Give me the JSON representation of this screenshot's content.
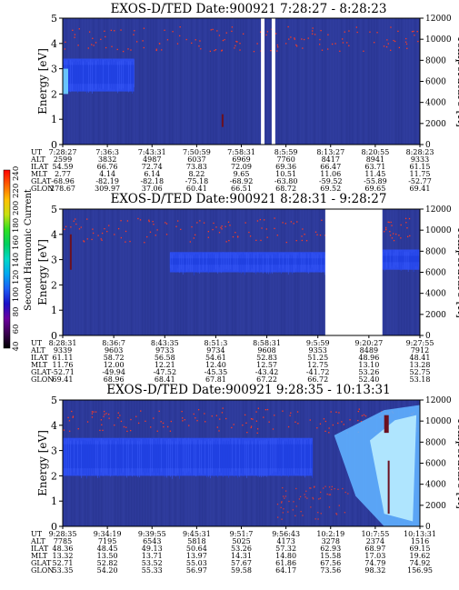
{
  "colors": {
    "background": "#2d3a9a",
    "band": "#2b4cf0",
    "band_core": "#1f3fe0",
    "aurora": "#5fb0ff",
    "aurora_core": "#b8ecff",
    "red_dot": "#ff3b20",
    "dark_mark": "#6b1020"
  },
  "colorbar": {
    "title": "Second Harmonic Current",
    "ticks": [
      "40",
      "60",
      "80",
      "100",
      "120",
      "140",
      "160",
      "180",
      "200",
      "220",
      "240"
    ],
    "stops": [
      "#000000",
      "#3a0050",
      "#6b00a0",
      "#1a10c8",
      "#1c5ef5",
      "#00a8f0",
      "#00d8c8",
      "#00d060",
      "#30e020",
      "#c8e010",
      "#ffc000",
      "#ff6000",
      "#ff0000"
    ]
  },
  "chart_data": [
    {
      "type": "heatmap",
      "title": "EXOS-D/TED   Date:900921  7:28:27 - 8:28:23",
      "ylabel": "Energy [eV]",
      "y2label": "Temperature [K]",
      "ylim": [
        0,
        5
      ],
      "y2lim": [
        0,
        12000
      ],
      "yticks": [
        "0",
        "1",
        "2",
        "3",
        "4",
        "5"
      ],
      "y2ticks": [
        "0",
        "2000",
        "4000",
        "6000",
        "8000",
        "10000",
        "12000"
      ],
      "data_gaps": [
        [
          0.555,
          0.565
        ],
        [
          0.585,
          0.595
        ]
      ],
      "band": {
        "segments": [
          [
            0.0,
            0.2,
            2.1,
            3.4
          ]
        ],
        "label": "low-energy ion band"
      },
      "rows": [
        {
          "label": "UT",
          "values": [
            "7:28:27",
            "7:36:3",
            "7:43:31",
            "7:50:59",
            "7:58:31",
            "8:5:59",
            "8:13:27",
            "8:20:55",
            "8:28:23"
          ]
        },
        {
          "label": "ALT",
          "values": [
            "2599",
            "3832",
            "4987",
            "6037",
            "6969",
            "7760",
            "8417",
            "8941",
            "9333"
          ]
        },
        {
          "label": "ILAT",
          "values": [
            "54.59",
            "66.76",
            "72.74",
            "73.83",
            "72.09",
            "69.36",
            "66.47",
            "63.71",
            "61.15"
          ]
        },
        {
          "label": "MLT",
          "values": [
            "2.77",
            "4.14",
            "6.14",
            "8.22",
            "9.65",
            "10.51",
            "11.06",
            "11.45",
            "11.75"
          ]
        },
        {
          "label": "GLAT",
          "values": [
            "-68.96",
            "-82.19",
            "-82.18",
            "-75.18",
            "-68.92",
            "-63.80",
            "-59.52",
            "-55.89",
            "-52.77"
          ]
        },
        {
          "label": "GLON",
          "values": [
            "278.67",
            "309.97",
            "37.06",
            "60.41",
            "66.51",
            "68.72",
            "69.52",
            "69.65",
            "69.41"
          ]
        }
      ]
    },
    {
      "type": "heatmap",
      "title": "EXOS-D/TED   Date:900921  8:28:31 - 9:28:27",
      "ylabel": "Energy [eV]",
      "y2label": "Temperature [K]",
      "ylim": [
        0,
        5
      ],
      "y2lim": [
        0,
        12000
      ],
      "yticks": [
        "0",
        "1",
        "2",
        "3",
        "4",
        "5"
      ],
      "y2ticks": [
        "0",
        "2000",
        "4000",
        "6000",
        "8000",
        "10000",
        "12000"
      ],
      "data_gaps": [
        [
          0.735,
          0.895
        ]
      ],
      "band": {
        "segments": [
          [
            0.3,
            0.735,
            2.5,
            3.3
          ],
          [
            0.895,
            1.0,
            2.6,
            3.4
          ]
        ],
        "label": "low-energy ion band"
      },
      "rows": [
        {
          "label": "UT",
          "values": [
            "8:28:31",
            "8:36:7",
            "8:43:35",
            "8:51:3",
            "8:58:31",
            "9:5:59",
            "9:20:27",
            "9:27:55"
          ]
        },
        {
          "label": "ALT",
          "values": [
            "9339",
            "9603",
            "9733",
            "9734",
            "9608",
            "9353",
            "8489",
            "7912"
          ]
        },
        {
          "label": "ILAT",
          "values": [
            "61.11",
            "58.72",
            "56.58",
            "54.61",
            "52.83",
            "51.25",
            "48.96",
            "48.41"
          ]
        },
        {
          "label": "MLT",
          "values": [
            "11.76",
            "12.00",
            "12.21",
            "12.40",
            "12.57",
            "12.75",
            "13.10",
            "13.28"
          ]
        },
        {
          "label": "GLAT",
          "values": [
            "-52.71",
            "-49.94",
            "-47.52",
            "-45.35",
            "-43.42",
            "-41.72",
            "53.26",
            "52.75"
          ]
        },
        {
          "label": "GLON",
          "values": [
            "69.41",
            "68.96",
            "68.41",
            "67.81",
            "67.22",
            "66.72",
            "52.40",
            "53.18"
          ]
        }
      ]
    },
    {
      "type": "heatmap",
      "title": "EXOS-D/TED   Date:900921  9:28:35 - 10:13:31",
      "ylabel": "Energy [eV]",
      "y2label": "Temperature [K]",
      "ylim": [
        0,
        5
      ],
      "y2lim": [
        0,
        12000
      ],
      "yticks": [
        "0",
        "1",
        "2",
        "3",
        "4",
        "5"
      ],
      "y2ticks": [
        "0",
        "2000",
        "4000",
        "6000",
        "8000",
        "10000",
        "12000"
      ],
      "data_gaps": [],
      "band": {
        "segments": [
          [
            0.0,
            0.7,
            2.0,
            3.5
          ]
        ],
        "label": "low-energy ion band"
      },
      "rows": [
        {
          "label": "UT",
          "values": [
            "9:28:35",
            "9:34:19",
            "9:39:55",
            "9:45:31",
            "9:51:7",
            "9:56:43",
            "10:2:19",
            "10:7:55",
            "10:13:31"
          ]
        },
        {
          "label": "ALT",
          "values": [
            "7785",
            "7195",
            "6543",
            "5818",
            "5025",
            "4173",
            "3278",
            "2374",
            "1516"
          ]
        },
        {
          "label": "ILAT",
          "values": [
            "48.36",
            "48.45",
            "49.13",
            "50.64",
            "53.26",
            "57.32",
            "62.93",
            "68.97",
            "69.15"
          ]
        },
        {
          "label": "MLT",
          "values": [
            "13.32",
            "13.50",
            "13.71",
            "13.97",
            "14.31",
            "14.80",
            "15.58",
            "17.03",
            "19.62"
          ]
        },
        {
          "label": "GLAT",
          "values": [
            "52.71",
            "52.82",
            "53.52",
            "55.03",
            "57.67",
            "61.86",
            "67.56",
            "74.79",
            "74.92"
          ]
        },
        {
          "label": "GLON",
          "values": [
            "53.35",
            "54.20",
            "55.33",
            "56.97",
            "59.58",
            "64.17",
            "73.56",
            "98.32",
            "156.95"
          ]
        }
      ]
    }
  ]
}
